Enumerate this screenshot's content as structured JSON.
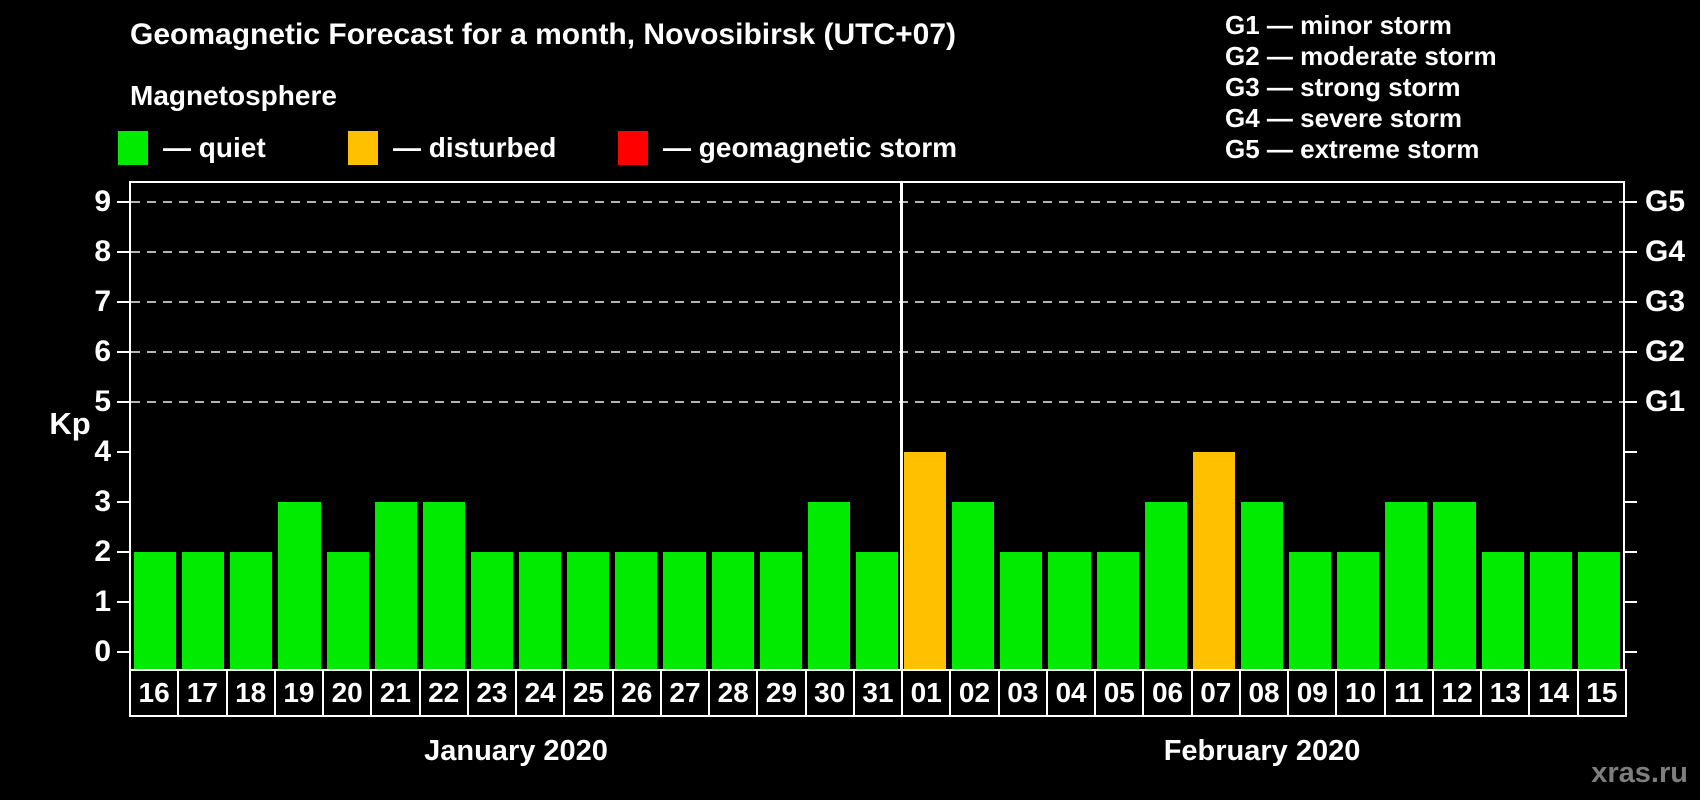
{
  "header": {
    "title": "Geomagnetic Forecast for a month, Novosibirsk (UTC+07)",
    "legend_heading": "Magnetosphere",
    "legend_items": [
      {
        "name": "quiet",
        "label": "— quiet",
        "color": "#00EB00"
      },
      {
        "name": "disturbed",
        "label": "— disturbed",
        "color": "#FFC000"
      },
      {
        "name": "storm",
        "label": "— geomagnetic storm",
        "color": "#FF0000"
      }
    ],
    "g_scale_legend": [
      "G1 — minor storm",
      "G2 — moderate storm",
      "G3 — strong storm",
      "G4 — severe storm",
      "G5 — extreme storm"
    ]
  },
  "chart_data": {
    "type": "bar",
    "ylabel": "Kp",
    "y_min": 0,
    "y_max": 9,
    "y_ticks": [
      0,
      1,
      2,
      3,
      4,
      5,
      6,
      7,
      8,
      9
    ],
    "gridlines_at": [
      5,
      6,
      7,
      8,
      9
    ],
    "right_axis": [
      {
        "value": 5,
        "label": "G1"
      },
      {
        "value": 6,
        "label": "G2"
      },
      {
        "value": 7,
        "label": "G3"
      },
      {
        "value": 8,
        "label": "G4"
      },
      {
        "value": 9,
        "label": "G5"
      }
    ],
    "color_rules": {
      "quiet_max": 3,
      "disturbed_max": 4
    },
    "colors": {
      "quiet": "#00EB00",
      "disturbed": "#FFC000",
      "storm": "#FF0000"
    },
    "groups": [
      {
        "label": "January 2020",
        "days": [
          "16",
          "17",
          "18",
          "19",
          "20",
          "21",
          "22",
          "23",
          "24",
          "25",
          "26",
          "27",
          "28",
          "29",
          "30",
          "31"
        ],
        "values": [
          2,
          2,
          2,
          3,
          2,
          3,
          3,
          2,
          2,
          2,
          2,
          2,
          2,
          2,
          3,
          2
        ]
      },
      {
        "label": "February 2020",
        "days": [
          "01",
          "02",
          "03",
          "04",
          "05",
          "06",
          "07",
          "08",
          "09",
          "10",
          "11",
          "12",
          "13",
          "14",
          "15"
        ],
        "values": [
          4,
          3,
          2,
          2,
          2,
          3,
          4,
          3,
          2,
          2,
          3,
          3,
          2,
          2,
          2
        ]
      }
    ]
  },
  "watermark": "xras.ru"
}
